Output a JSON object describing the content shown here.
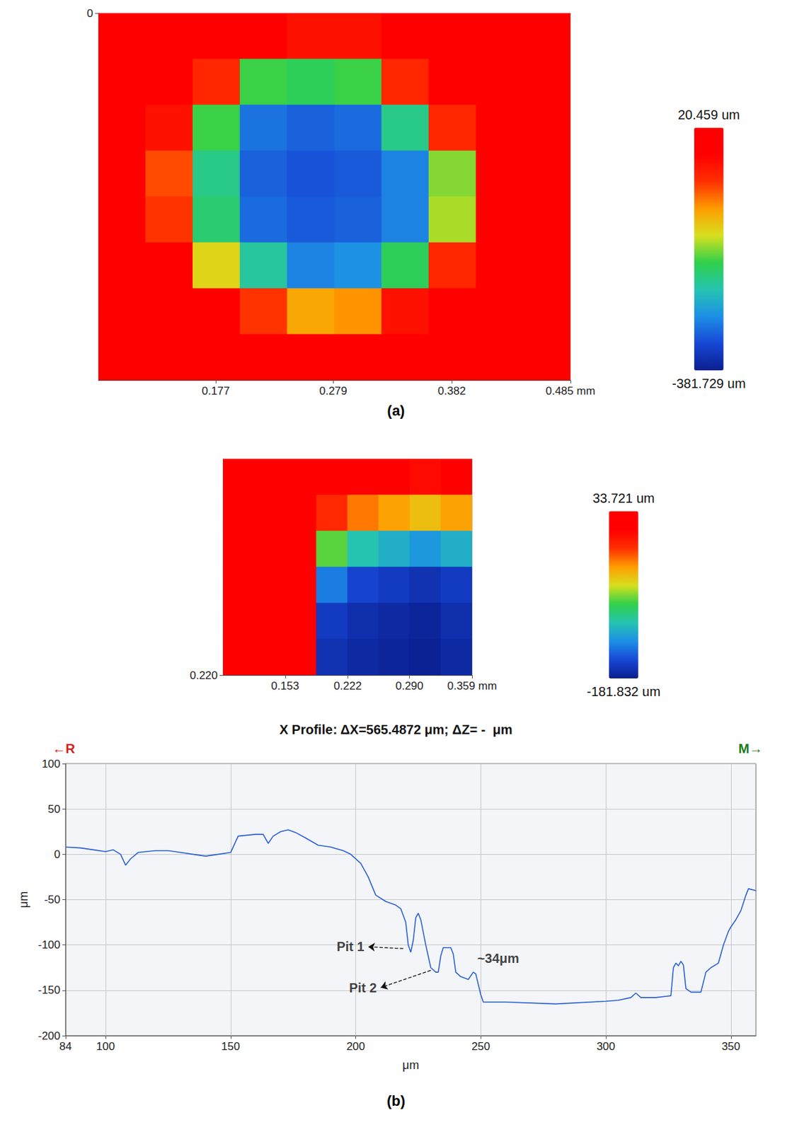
{
  "chart_data": [
    {
      "type": "surface",
      "panel": "(a)",
      "grid": true,
      "x": [
        0.0955,
        0.1365,
        0.1775,
        0.2185,
        0.2595,
        0.3005,
        0.3415,
        0.3825,
        0.4235,
        0.4645
      ],
      "y": [
        0.0225,
        0.0675,
        0.1125,
        0.1575,
        0.2025,
        0.2475,
        0.2925,
        0.3375
      ],
      "z": [
        [
          12,
          8,
          15,
          10,
          -40,
          -40,
          12,
          9,
          14,
          10
        ],
        [
          10,
          14,
          -60,
          -200,
          -210,
          -200,
          -60,
          5,
          12,
          8
        ],
        [
          15,
          -40,
          -200,
          -310,
          -320,
          -315,
          -230,
          -60,
          10,
          13
        ],
        [
          9,
          -80,
          -230,
          -320,
          -330,
          -325,
          -300,
          -180,
          -20,
          11
        ],
        [
          12,
          -70,
          -220,
          -315,
          -325,
          -320,
          -300,
          -170,
          -20,
          9
        ],
        [
          14,
          -20,
          -150,
          -240,
          -300,
          -290,
          -210,
          -60,
          12,
          15
        ],
        [
          10,
          13,
          -20,
          -70,
          -120,
          -110,
          -40,
          11,
          8,
          12
        ],
        [
          15,
          9,
          12,
          10,
          0,
          5,
          14,
          10,
          13,
          9
        ]
      ],
      "xlim": [
        0.075,
        0.485
      ],
      "xticks": [
        0.177,
        0.279,
        0.382,
        {
          "value": 0.485,
          "label": "0.485 mm"
        }
      ],
      "ylim": [
        0,
        0.36
      ],
      "yticks": [
        0
      ],
      "colorbar_range": [
        -381.729,
        20.459
      ],
      "colorbar_ticks": [
        {
          "value": -381.729,
          "label": "-381.729 um"
        },
        {
          "value": 20.459,
          "label": "20.459 um"
        }
      ]
    },
    {
      "type": "surface",
      "grid": true,
      "x": [
        0.1017,
        0.136,
        0.1703,
        0.2046,
        0.2389,
        0.2732,
        0.3075,
        0.3418
      ],
      "y": [
        0.0183,
        0.055,
        0.0917,
        0.1283,
        0.165,
        0.2017
      ],
      "z": [
        [
          28,
          25,
          22,
          20,
          15,
          10,
          5,
          10
        ],
        [
          25,
          22,
          15,
          -10,
          -30,
          -40,
          -50,
          -40
        ],
        [
          22,
          20,
          10,
          -80,
          -110,
          -120,
          -130,
          -120
        ],
        [
          20,
          20,
          10,
          -140,
          -160,
          -165,
          -170,
          -165
        ],
        [
          25,
          22,
          15,
          -165,
          -172,
          -175,
          -178,
          -172
        ],
        [
          25,
          25,
          20,
          -170,
          -175,
          -178,
          -180,
          -175
        ]
      ],
      "xlim": [
        0.0845,
        0.359
      ],
      "xticks": [
        0.153,
        0.222,
        {
          "value": 0.29,
          "label": "0.290"
        },
        {
          "value": 0.359,
          "label": "0.359 mm"
        }
      ],
      "ylim": [
        0,
        0.22
      ],
      "yticks": [
        {
          "value": 0.22,
          "label": "0.220"
        }
      ],
      "colorbar_range": [
        -181.832,
        33.721
      ],
      "colorbar_ticks": [
        {
          "value": -181.832,
          "label": "-181.832 um"
        },
        {
          "value": 33.721,
          "label": "33.721 um"
        }
      ]
    },
    {
      "type": "line",
      "panel": "(b)",
      "grid": true,
      "title": "X Profile: ΔX=565.4872 μm; ΔZ= -  μm",
      "x_label": "μm",
      "y_label": "μm",
      "corner_labels": [
        {
          "text": "←R",
          "color": "#d42020",
          "side": "left"
        },
        {
          "text": "M→",
          "color": "#1f7a1f",
          "side": "right"
        }
      ],
      "color": "#2b5fd6",
      "line_style": "solid",
      "x": [
        84,
        90,
        95,
        100,
        103,
        106,
        108,
        110,
        113,
        120,
        125,
        130,
        135,
        140,
        145,
        150,
        153,
        160,
        163,
        165,
        167,
        170,
        173,
        176,
        180,
        185,
        190,
        195,
        198,
        202,
        205,
        208,
        212,
        216,
        218,
        220,
        221,
        222,
        223,
        224,
        225,
        226,
        228,
        230,
        232,
        233,
        234,
        235,
        238,
        239,
        240,
        242,
        245,
        247,
        248,
        250,
        251,
        260,
        280,
        300,
        305,
        310,
        312,
        314,
        320,
        326,
        327,
        328,
        329,
        330,
        331,
        332,
        334,
        338,
        340,
        342,
        345,
        347,
        349,
        350,
        352,
        354,
        356,
        357,
        360
      ],
      "values": [
        8,
        7,
        5,
        3,
        5,
        0,
        -12,
        -5,
        2,
        4,
        4,
        2,
        0,
        -2,
        0,
        2,
        20,
        22,
        22,
        12,
        20,
        25,
        27,
        24,
        18,
        10,
        8,
        4,
        0,
        -10,
        -25,
        -45,
        -52,
        -56,
        -60,
        -75,
        -100,
        -108,
        -95,
        -70,
        -65,
        -72,
        -100,
        -125,
        -130,
        -130,
        -112,
        -103,
        -103,
        -110,
        -130,
        -135,
        -138,
        -130,
        -132,
        -155,
        -163,
        -163,
        -165,
        -162,
        -161,
        -158,
        -153,
        -158,
        -158,
        -156,
        -125,
        -120,
        -123,
        -118,
        -122,
        -148,
        -152,
        -152,
        -130,
        -125,
        -120,
        -100,
        -85,
        -80,
        -72,
        -62,
        -45,
        -38,
        -40
      ],
      "xlim": [
        84,
        360
      ],
      "xticks": [
        84,
        100,
        150,
        200,
        250,
        300,
        350
      ],
      "ylim": [
        -200,
        100
      ],
      "yticks": [
        -200,
        -150,
        -100,
        -50,
        0,
        50,
        100
      ],
      "annotations": [
        {
          "text": "Pit 1",
          "x": 205,
          "y": -102,
          "arrow_from": [
            219,
            -104
          ]
        },
        {
          "text": "Pit 2",
          "x": 210,
          "y": -147,
          "arrow_from": [
            230,
            -128
          ]
        },
        {
          "text": "~34μm",
          "x": 247,
          "y": -115
        }
      ]
    }
  ]
}
